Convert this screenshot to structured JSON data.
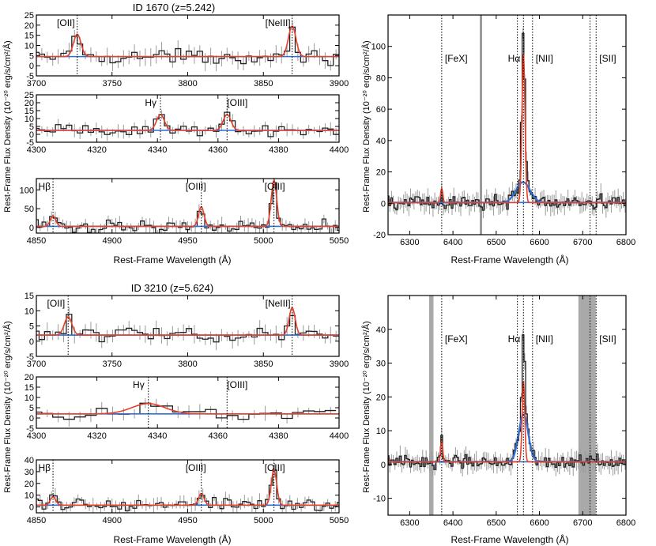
{
  "colors": {
    "data": "#222222",
    "err": "#9a9a9a",
    "fit": "#e8402a",
    "cont": "#2f6fd6",
    "broad": "#2f6fd6",
    "mask": "#9a9a9a"
  },
  "groups": [
    {
      "title": "ID 1670 (z=5.242)",
      "ylabel_left": "Rest-Frame Flux Density (10⁻²⁰ erg/s/cm²/Å)",
      "ylabel_right": "Rest-Frame Flux Density (10⁻²⁰ erg/s/cm²/Å)",
      "xlabel_left": "Rest-Frame Wavelength (Å)",
      "xlabel_right": "Rest-Frame Wavelength (Å)"
    },
    {
      "title": "ID 3210 (z=5.624)",
      "ylabel_left": "Rest-Frame Flux Density (10⁻²⁰ erg/s/cm²/Å)",
      "ylabel_right": "Rest-Frame Flux Density (10⁻²⁰ erg/s/cm²/Å)",
      "xlabel_left": "Rest-Frame Wavelength (Å)",
      "xlabel_right": "Rest-Frame Wavelength (Å)"
    }
  ],
  "chart_data": [
    {
      "type": "line",
      "object": "ID 1670",
      "xlim": [
        3700,
        3900
      ],
      "ylim": [
        -5,
        25
      ],
      "xticks": [
        3700,
        3750,
        3800,
        3850,
        3900
      ],
      "yticks": [
        -5,
        0,
        5,
        10,
        15,
        20,
        25
      ],
      "continuum": 4.5,
      "bin": 3.6,
      "lines": [
        {
          "label": "[OII]",
          "x": 3727,
          "amp": 11,
          "sigma": 2.5
        },
        {
          "label": "[NeIII]",
          "x": 3869,
          "amp": 15,
          "sigma": 2.5
        }
      ]
    },
    {
      "type": "line",
      "object": "ID 1670",
      "xlim": [
        4300,
        4400
      ],
      "ylim": [
        -5,
        25
      ],
      "xticks": [
        4300,
        4320,
        4340,
        4360,
        4380,
        4400
      ],
      "yticks": [
        -5,
        0,
        5,
        10,
        15,
        20,
        25
      ],
      "continuum": 2.5,
      "bin": 1.8,
      "lines": [
        {
          "label": "Hγ",
          "x": 4341,
          "amp": 10,
          "sigma": 1.3
        },
        {
          "label": "[OIII]",
          "x": 4363,
          "amp": 10,
          "sigma": 1.3
        }
      ]
    },
    {
      "type": "line",
      "object": "ID 1670",
      "xlim": [
        4850,
        5050
      ],
      "ylim": [
        -5,
        25
      ],
      "xticks": [
        4850,
        4900,
        4950,
        5000,
        5050
      ],
      "yticks": [
        0,
        50,
        100
      ],
      "ylim_override": [
        -15,
        130
      ],
      "continuum": 3,
      "bin": 2.5,
      "lines": [
        {
          "label": "Hβ",
          "x": 4861,
          "amp": 27,
          "sigma": 1.8
        },
        {
          "label": "[OIII]",
          "x": 4959,
          "amp": 52,
          "sigma": 1.8
        },
        {
          "label": "[OIII]",
          "x": 5007,
          "amp": 122,
          "sigma": 1.8
        }
      ]
    },
    {
      "type": "line",
      "object": "ID 1670",
      "xlim": [
        6250,
        6800
      ],
      "ylim": [
        -20,
        120
      ],
      "xticks": [
        6300,
        6400,
        6500,
        6600,
        6700,
        6800
      ],
      "yticks": [
        -20,
        0,
        20,
        40,
        60,
        80,
        100
      ],
      "continuum": 0.5,
      "bin": 4,
      "lines": [
        {
          "label": "[FeX]",
          "x": 6374,
          "amp": 9,
          "sigma": 2.5
        },
        {
          "label": "Hα",
          "x": 6563,
          "amp": 95,
          "sigma": 3.5
        },
        {
          "label": "[NII]",
          "x": 6549,
          "amp": 0,
          "sigma": 3
        },
        {
          "label": "[NII]",
          "x": 6584,
          "amp": 0,
          "sigma": 3
        },
        {
          "label": "[SII]",
          "x": 6717,
          "amp": 0,
          "sigma": 3
        },
        {
          "label": "[SII]",
          "x": 6731,
          "amp": 0,
          "sigma": 3
        }
      ],
      "broad": {
        "x": 6562,
        "amp": 13,
        "sigma": 16
      }
    },
    {
      "type": "line",
      "object": "ID 3210",
      "xlim": [
        3700,
        3900
      ],
      "ylim": [
        -5,
        15
      ],
      "xticks": [
        3700,
        3750,
        3800,
        3850,
        3900
      ],
      "yticks": [
        -5,
        0,
        5,
        10,
        15
      ],
      "continuum": 2,
      "bin": 3.6,
      "lines": [
        {
          "label": "[OII]",
          "x": 3721,
          "amp": 6,
          "sigma": 2.5
        },
        {
          "label": "[NeIII]",
          "x": 3869,
          "amp": 9,
          "sigma": 2.0
        }
      ]
    },
    {
      "type": "line",
      "object": "ID 3210",
      "xlim": [
        4300,
        4400
      ],
      "ylim": [
        -5,
        20
      ],
      "xticks": [
        4300,
        4320,
        4340,
        4360,
        4380,
        4400
      ],
      "yticks": [
        -5,
        0,
        5,
        10,
        15,
        20
      ],
      "continuum": 2,
      "bin": 3.6,
      "lines": [
        {
          "label": "Hγ",
          "x": 4337,
          "amp": 5,
          "sigma": 5.5
        },
        {
          "label": "[OIII]",
          "x": 4363,
          "amp": 0,
          "sigma": 1.5
        }
      ]
    },
    {
      "type": "line",
      "object": "ID 3210",
      "xlim": [
        4850,
        5050
      ],
      "ylim": [
        -5,
        40
      ],
      "xticks": [
        4850,
        4900,
        4950,
        5000,
        5050
      ],
      "yticks": [
        0,
        10,
        20,
        30,
        40
      ],
      "continuum": 1.5,
      "bin": 2.5,
      "lines": [
        {
          "label": "Hβ",
          "x": 4861,
          "amp": 7,
          "sigma": 1.8
        },
        {
          "label": "[OIII]",
          "x": 4959,
          "amp": 10,
          "sigma": 1.8
        },
        {
          "label": "[OIII]",
          "x": 5007,
          "amp": 30,
          "sigma": 1.8
        }
      ]
    },
    {
      "type": "line",
      "object": "ID 3210",
      "xlim": [
        6250,
        6800
      ],
      "ylim": [
        -15,
        50
      ],
      "xticks": [
        6300,
        6400,
        6500,
        6600,
        6700,
        6800
      ],
      "yticks": [
        -10,
        0,
        10,
        20,
        30,
        40
      ],
      "continuum": 0.8,
      "bin": 4,
      "lines": [
        {
          "label": "[FeX]",
          "x": 6374,
          "amp": 6,
          "sigma": 2.5
        },
        {
          "label": "Hα",
          "x": 6563,
          "amp": 24,
          "sigma": 3.0
        },
        {
          "label": "[NII]",
          "x": 6549,
          "amp": 0,
          "sigma": 3
        },
        {
          "label": "[NII]",
          "x": 6584,
          "amp": 0,
          "sigma": 3
        },
        {
          "label": "[SII]",
          "x": 6717,
          "amp": 0,
          "sigma": 3
        },
        {
          "label": "[SII]",
          "x": 6731,
          "amp": 0,
          "sigma": 3
        }
      ],
      "broad": {
        "x": 6563,
        "amp": 14,
        "sigma": 11
      }
    }
  ]
}
